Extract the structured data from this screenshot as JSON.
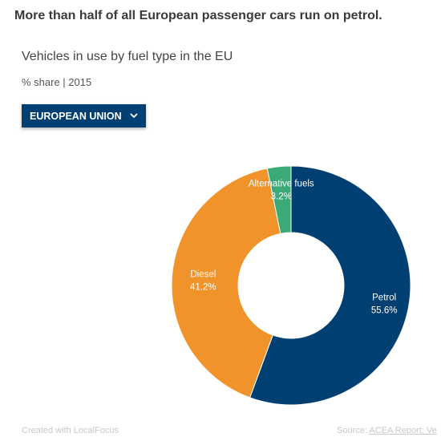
{
  "headline": "More than half of all European passenger cars run on petrol.",
  "dropdown": {
    "label": "EUROPEAN UNION",
    "icon": "chevron-down-icon"
  },
  "footer": {
    "created_with": "Created with LocalFocus",
    "source_prefix": "Source: ",
    "source_link": "ACEA Report: Ve"
  },
  "chart_data": {
    "type": "pie",
    "title": "Vehicles in use by fuel type in the EU",
    "subtitle": "% share | 2015",
    "donut": true,
    "slices": [
      {
        "label": "Petrol",
        "value": 55.6,
        "display": "55.6%",
        "color": "#003f72"
      },
      {
        "label": "Diesel",
        "value": 41.2,
        "display": "41.2%",
        "color": "#f0932b"
      },
      {
        "label": "Alternative fuels",
        "value": 3.2,
        "display": "3.2%",
        "color": "#3aaa78"
      }
    ]
  }
}
